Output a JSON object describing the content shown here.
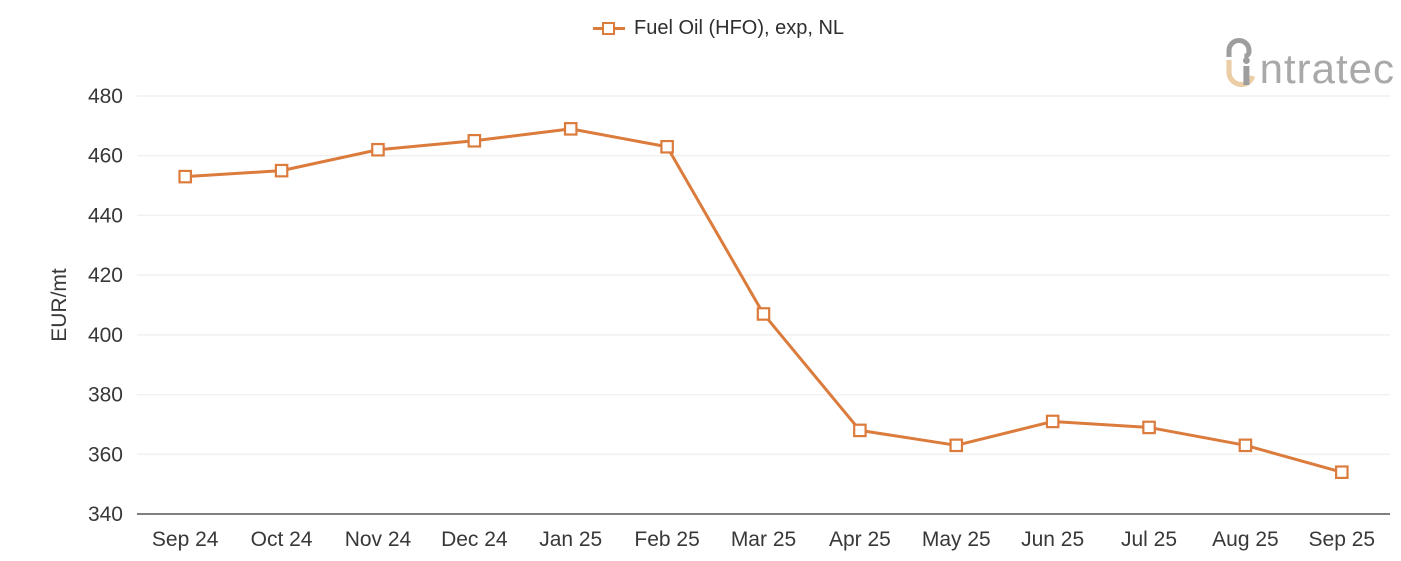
{
  "legend": {
    "label": "Fuel Oil (HFO), exp, NL"
  },
  "logo": {
    "wordmark": "intratec",
    "text_after_mark": "ntratec"
  },
  "colors": {
    "accent": "#DB7B3C",
    "grid_line": "#F1F1F1",
    "axis_line": "#7F7F7F",
    "tick_text": "#383838",
    "legend_text": "#2E2E2E",
    "logo_gray": "#9E9E9E",
    "logo_text_gray": "#A9A9A9",
    "logo_tan": "#EBCDA6"
  },
  "chart_data": {
    "type": "line",
    "ylabel": "EUR/mt",
    "xlabel": "",
    "categories": [
      "Sep 24",
      "Oct 24",
      "Nov 24",
      "Dec 24",
      "Jan 25",
      "Feb 25",
      "Mar 25",
      "Apr 25",
      "May 25",
      "Jun 25",
      "Jul 25",
      "Aug 25",
      "Sep 25"
    ],
    "series": [
      {
        "name": "Fuel Oil (HFO), exp, NL",
        "values": [
          453,
          455,
          462,
          465,
          469,
          463,
          407,
          368,
          363,
          371,
          369,
          363,
          354
        ]
      }
    ],
    "ylim": [
      340,
      480
    ],
    "yticks": [
      340,
      360,
      380,
      400,
      420,
      440,
      460,
      480
    ],
    "grid": true,
    "legend_position": "top-center",
    "marker": "open-square"
  }
}
